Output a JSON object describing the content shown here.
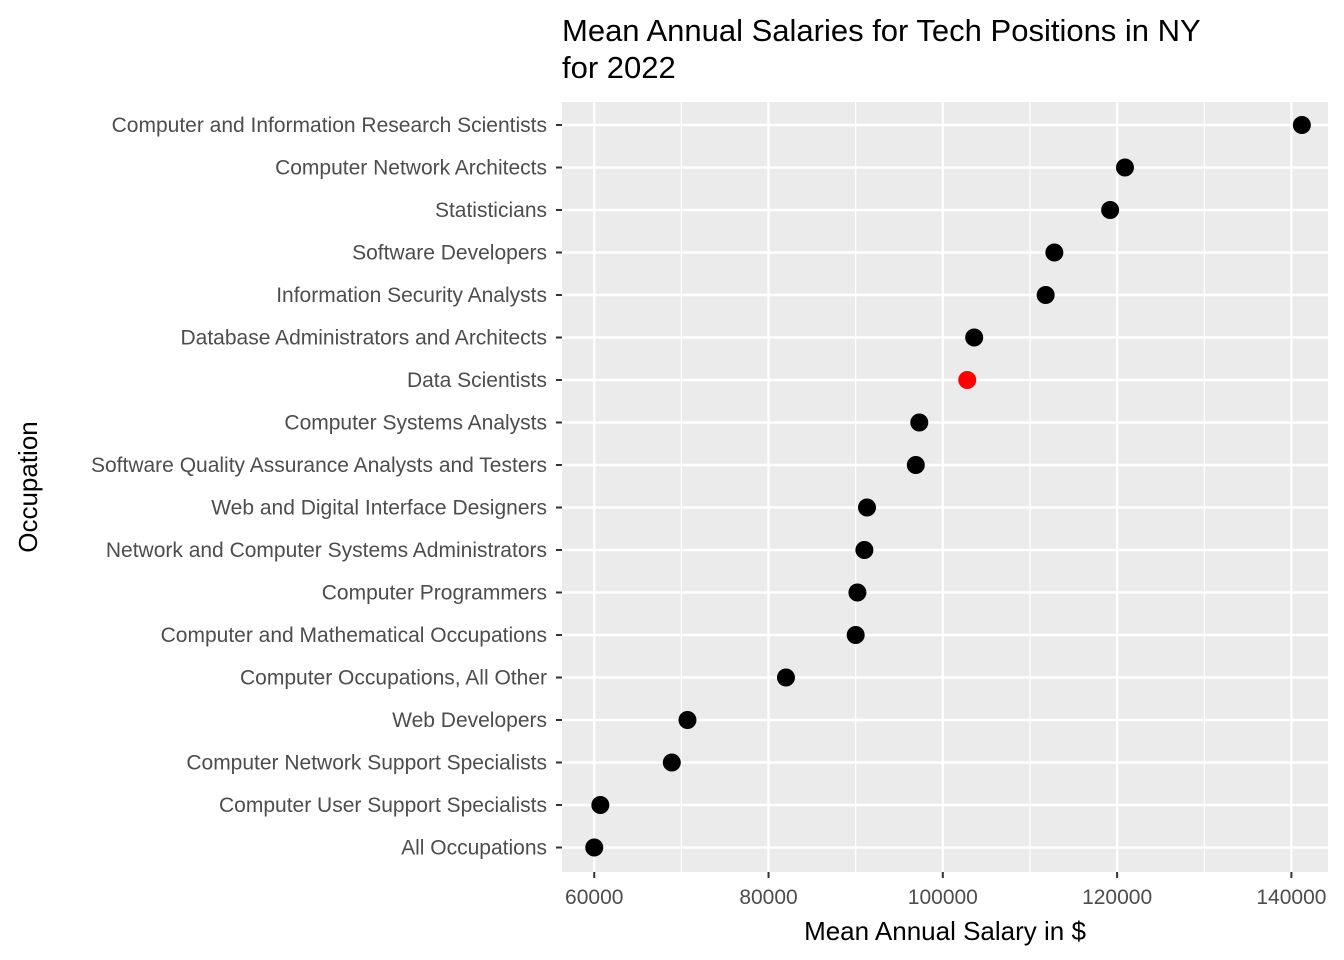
{
  "chart_data": {
    "type": "scatter",
    "title_lines": [
      "Mean Annual Salaries for Tech Positions in NY",
      "for 2022"
    ],
    "xlabel": "Mean Annual Salary in $",
    "ylabel": "Occupation",
    "xlim": [
      56300,
      144200
    ],
    "x_ticks": [
      60000,
      80000,
      100000,
      120000,
      140000
    ],
    "x_tick_labels": [
      "60000",
      "80000",
      "100000",
      "120000",
      "140000"
    ],
    "grid": true,
    "highlight_color": "#ff0000",
    "point_color": "#000000",
    "panel_background": "#ebebeb",
    "categories": [
      "All Occupations",
      "Computer User Support Specialists",
      "Computer Network Support Specialists",
      "Web Developers",
      "Computer Occupations, All Other",
      "Computer and Mathematical Occupations",
      "Computer Programmers",
      "Network and Computer Systems Administrators",
      "Web and Digital Interface Designers",
      "Software Quality Assurance Analysts and Testers",
      "Computer Systems Analysts",
      "Data Scientists",
      "Database Administrators and Architects",
      "Information Security Analysts",
      "Software Developers",
      "Statisticians",
      "Computer Network Architects",
      "Computer and Information Research Scientists"
    ],
    "values": [
      60000,
      60700,
      68900,
      70700,
      82000,
      90000,
      90200,
      91000,
      91300,
      96900,
      97300,
      102800,
      103600,
      111800,
      112800,
      119200,
      120900,
      141200
    ],
    "highlighted": [
      "Data Scientists"
    ]
  }
}
